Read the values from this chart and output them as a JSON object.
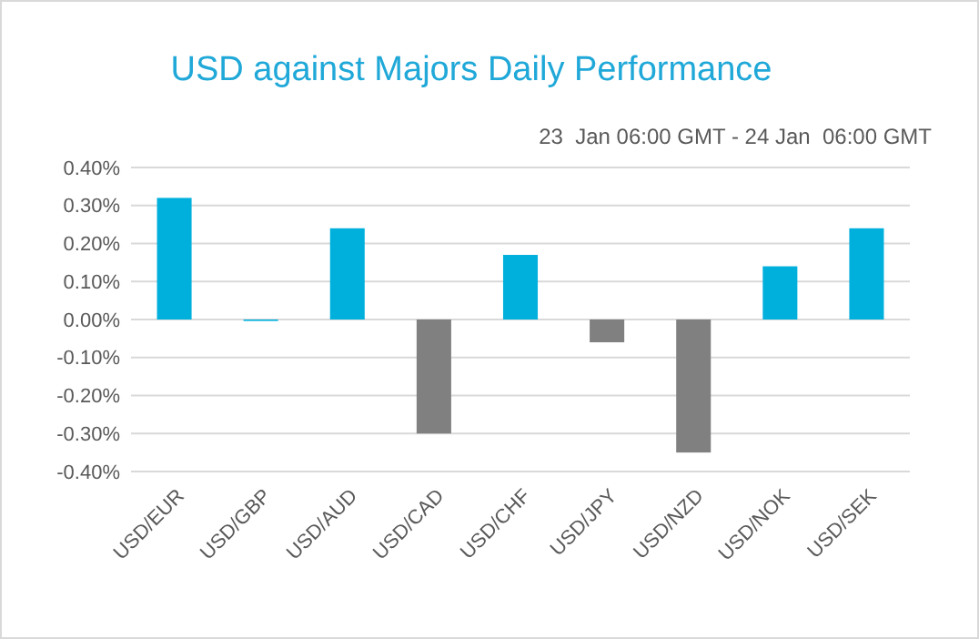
{
  "chart_data": {
    "type": "bar",
    "title": "USD against Majors Daily Performance",
    "subtitle": "23  Jan 06:00 GMT - 24 Jan  06:00 GMT",
    "categories": [
      "USD/EUR",
      "USD/GBP",
      "USD/AUD",
      "USD/CAD",
      "USD/CHF",
      "USD/JPY",
      "USD/NZD",
      "USD/NOK",
      "USD/SEK"
    ],
    "values": [
      0.32,
      0.0,
      0.24,
      -0.3,
      0.17,
      -0.06,
      -0.35,
      0.14,
      0.24
    ],
    "colors": [
      "#00b0dc",
      "#00b0dc",
      "#00b0dc",
      "#808080",
      "#00b0dc",
      "#808080",
      "#808080",
      "#00b0dc",
      "#00b0dc"
    ],
    "ylim": [
      -0.4,
      0.4
    ],
    "yticks": [
      {
        "value": -0.4,
        "label": "-0.40%"
      },
      {
        "value": -0.3,
        "label": "-0.30%"
      },
      {
        "value": -0.2,
        "label": "-0.20%"
      },
      {
        "value": -0.1,
        "label": "-0.10%"
      },
      {
        "value": 0,
        "label": "0.00%"
      },
      {
        "value": 0.1,
        "label": "0.10%"
      },
      {
        "value": 0.2,
        "label": "0.20%"
      },
      {
        "value": 0.3,
        "label": "0.30%"
      },
      {
        "value": 0.4,
        "label": "0.40%"
      }
    ],
    "grid": "y"
  }
}
